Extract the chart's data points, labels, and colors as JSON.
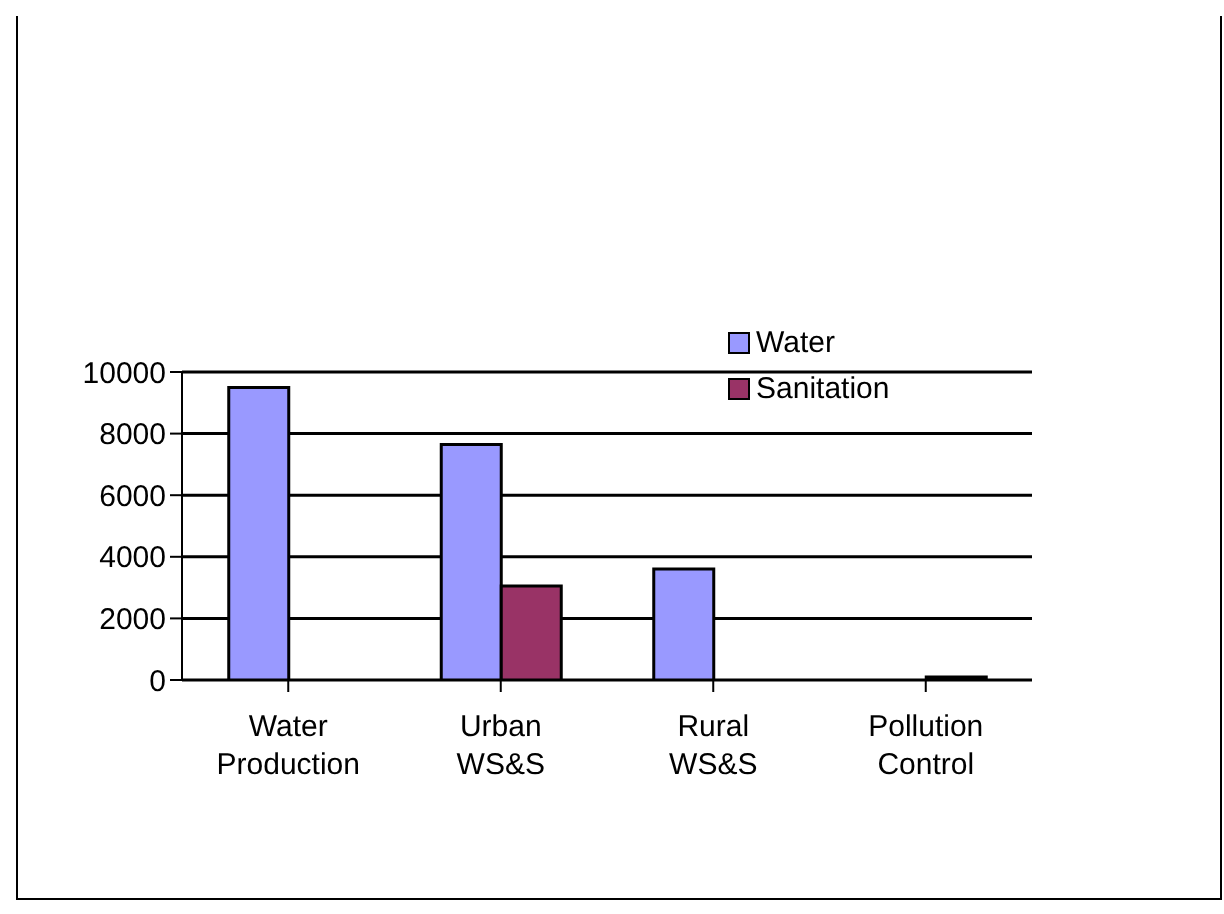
{
  "chart_data": {
    "type": "bar",
    "categories": [
      "Water Production",
      "Urban WS&S",
      "Rural WS&S",
      "Pollution Control"
    ],
    "series": [
      {
        "name": "Water",
        "color": "#9999ff",
        "values": [
          9500,
          7650,
          3600,
          null
        ]
      },
      {
        "name": "Sanitation",
        "color": "#993366",
        "values": [
          null,
          3050,
          null,
          100
        ]
      }
    ],
    "ylim": [
      0,
      10000
    ],
    "yticks": [
      0,
      2000,
      4000,
      6000,
      8000,
      10000
    ],
    "grid": "y",
    "legend": "top right"
  }
}
